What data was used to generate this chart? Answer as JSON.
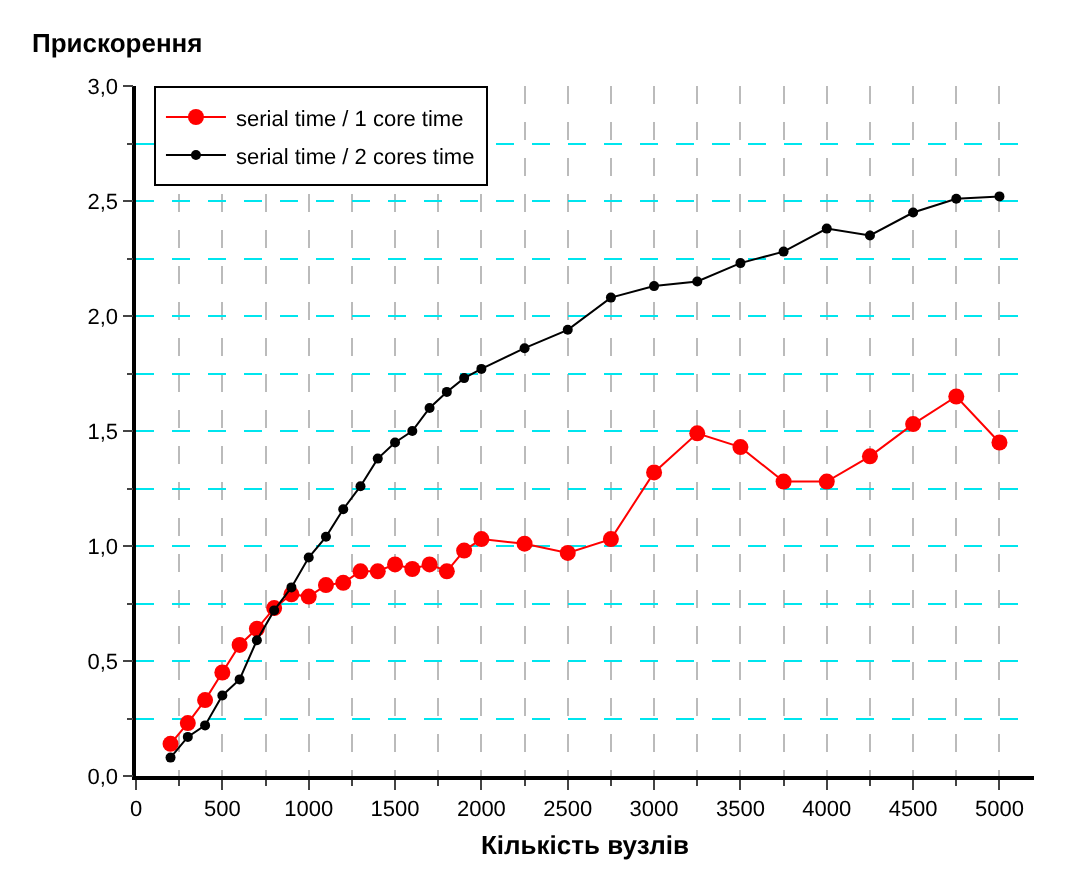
{
  "chart_data": {
    "type": "line",
    "ylabel": "Прискорення",
    "xlabel": "Кількість вузлів",
    "x": [
      200,
      300,
      400,
      500,
      600,
      700,
      800,
      900,
      1000,
      1100,
      1200,
      1300,
      1400,
      1500,
      1600,
      1700,
      1800,
      1900,
      2000,
      2250,
      2500,
      2750,
      3000,
      3250,
      3500,
      3750,
      4000,
      4250,
      4500,
      4750,
      5000
    ],
    "series": [
      {
        "name": "serial time / 1 core time",
        "color": "#ff0000",
        "values": [
          0.14,
          0.23,
          0.33,
          0.45,
          0.57,
          0.64,
          0.73,
          0.79,
          0.78,
          0.83,
          0.84,
          0.89,
          0.89,
          0.92,
          0.9,
          0.92,
          0.89,
          0.98,
          1.03,
          1.01,
          0.97,
          1.03,
          1.32,
          1.49,
          1.43,
          1.28,
          1.28,
          1.39,
          1.53,
          1.65,
          1.45
        ]
      },
      {
        "name": "serial time / 2 cores time",
        "color": "#000000",
        "values": [
          0.08,
          0.17,
          0.22,
          0.35,
          0.42,
          0.59,
          0.72,
          0.82,
          0.95,
          1.04,
          1.16,
          1.26,
          1.38,
          1.45,
          1.5,
          1.6,
          1.67,
          1.73,
          1.77,
          1.86,
          1.94,
          2.08,
          2.13,
          2.15,
          2.23,
          2.28,
          2.38,
          2.35,
          2.45,
          2.51,
          2.52
        ]
      }
    ],
    "xlim": [
      0,
      5200
    ],
    "xticks": [
      0,
      500,
      1000,
      1500,
      2000,
      2500,
      3000,
      3500,
      4000,
      4500,
      5000
    ],
    "ylim": [
      0,
      3.0
    ],
    "yticks": [
      {
        "value": 0,
        "label": "0,0"
      },
      {
        "value": 0.5,
        "label": "0,5"
      },
      {
        "value": 1.0,
        "label": "1,0"
      },
      {
        "value": 1.5,
        "label": "1,5"
      },
      {
        "value": 2.0,
        "label": "2,0"
      },
      {
        "value": 2.5,
        "label": "2,5"
      },
      {
        "value": 3.0,
        "label": "3,0"
      }
    ],
    "grid": true,
    "legend": "top left",
    "marker": "circle",
    "line_style": "solid"
  }
}
